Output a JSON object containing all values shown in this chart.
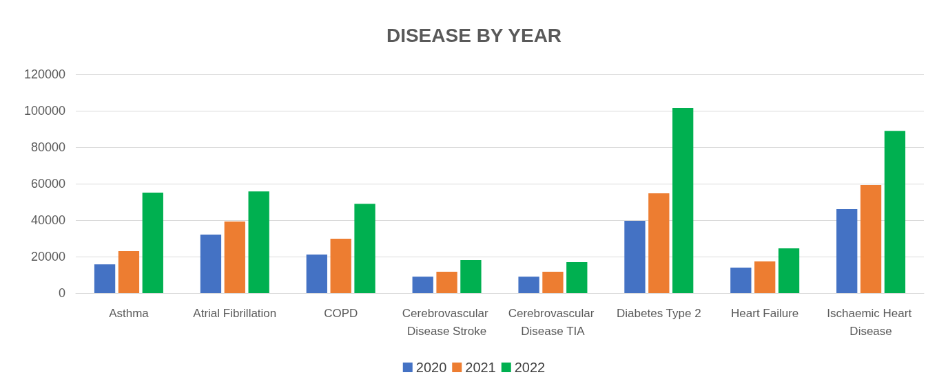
{
  "chart_data": {
    "type": "bar",
    "title": "DISEASE BY YEAR",
    "categories": [
      "Asthma",
      "Atrial Fibrillation",
      "COPD",
      "Cerebrovascular Disease Stroke",
      "Cerebrovascular Disease TIA",
      "Diabetes Type 2",
      "Heart Failure",
      "Ischaemic Heart Disease"
    ],
    "series": [
      {
        "name": "2020",
        "color": "#4472c4",
        "values": [
          15800,
          32100,
          21100,
          9000,
          9000,
          39600,
          14000,
          46000
        ]
      },
      {
        "name": "2021",
        "color": "#ed7d31",
        "values": [
          23000,
          39200,
          29800,
          11700,
          11700,
          54700,
          17400,
          59200
        ]
      },
      {
        "name": "2022",
        "color": "#00b050",
        "values": [
          55100,
          55800,
          49000,
          18100,
          17000,
          101500,
          24500,
          89000
        ]
      }
    ],
    "ylim": [
      0,
      120000
    ],
    "yticks": [
      0,
      20000,
      40000,
      60000,
      80000,
      100000,
      120000
    ],
    "grid": "y",
    "legend": "bottom"
  }
}
